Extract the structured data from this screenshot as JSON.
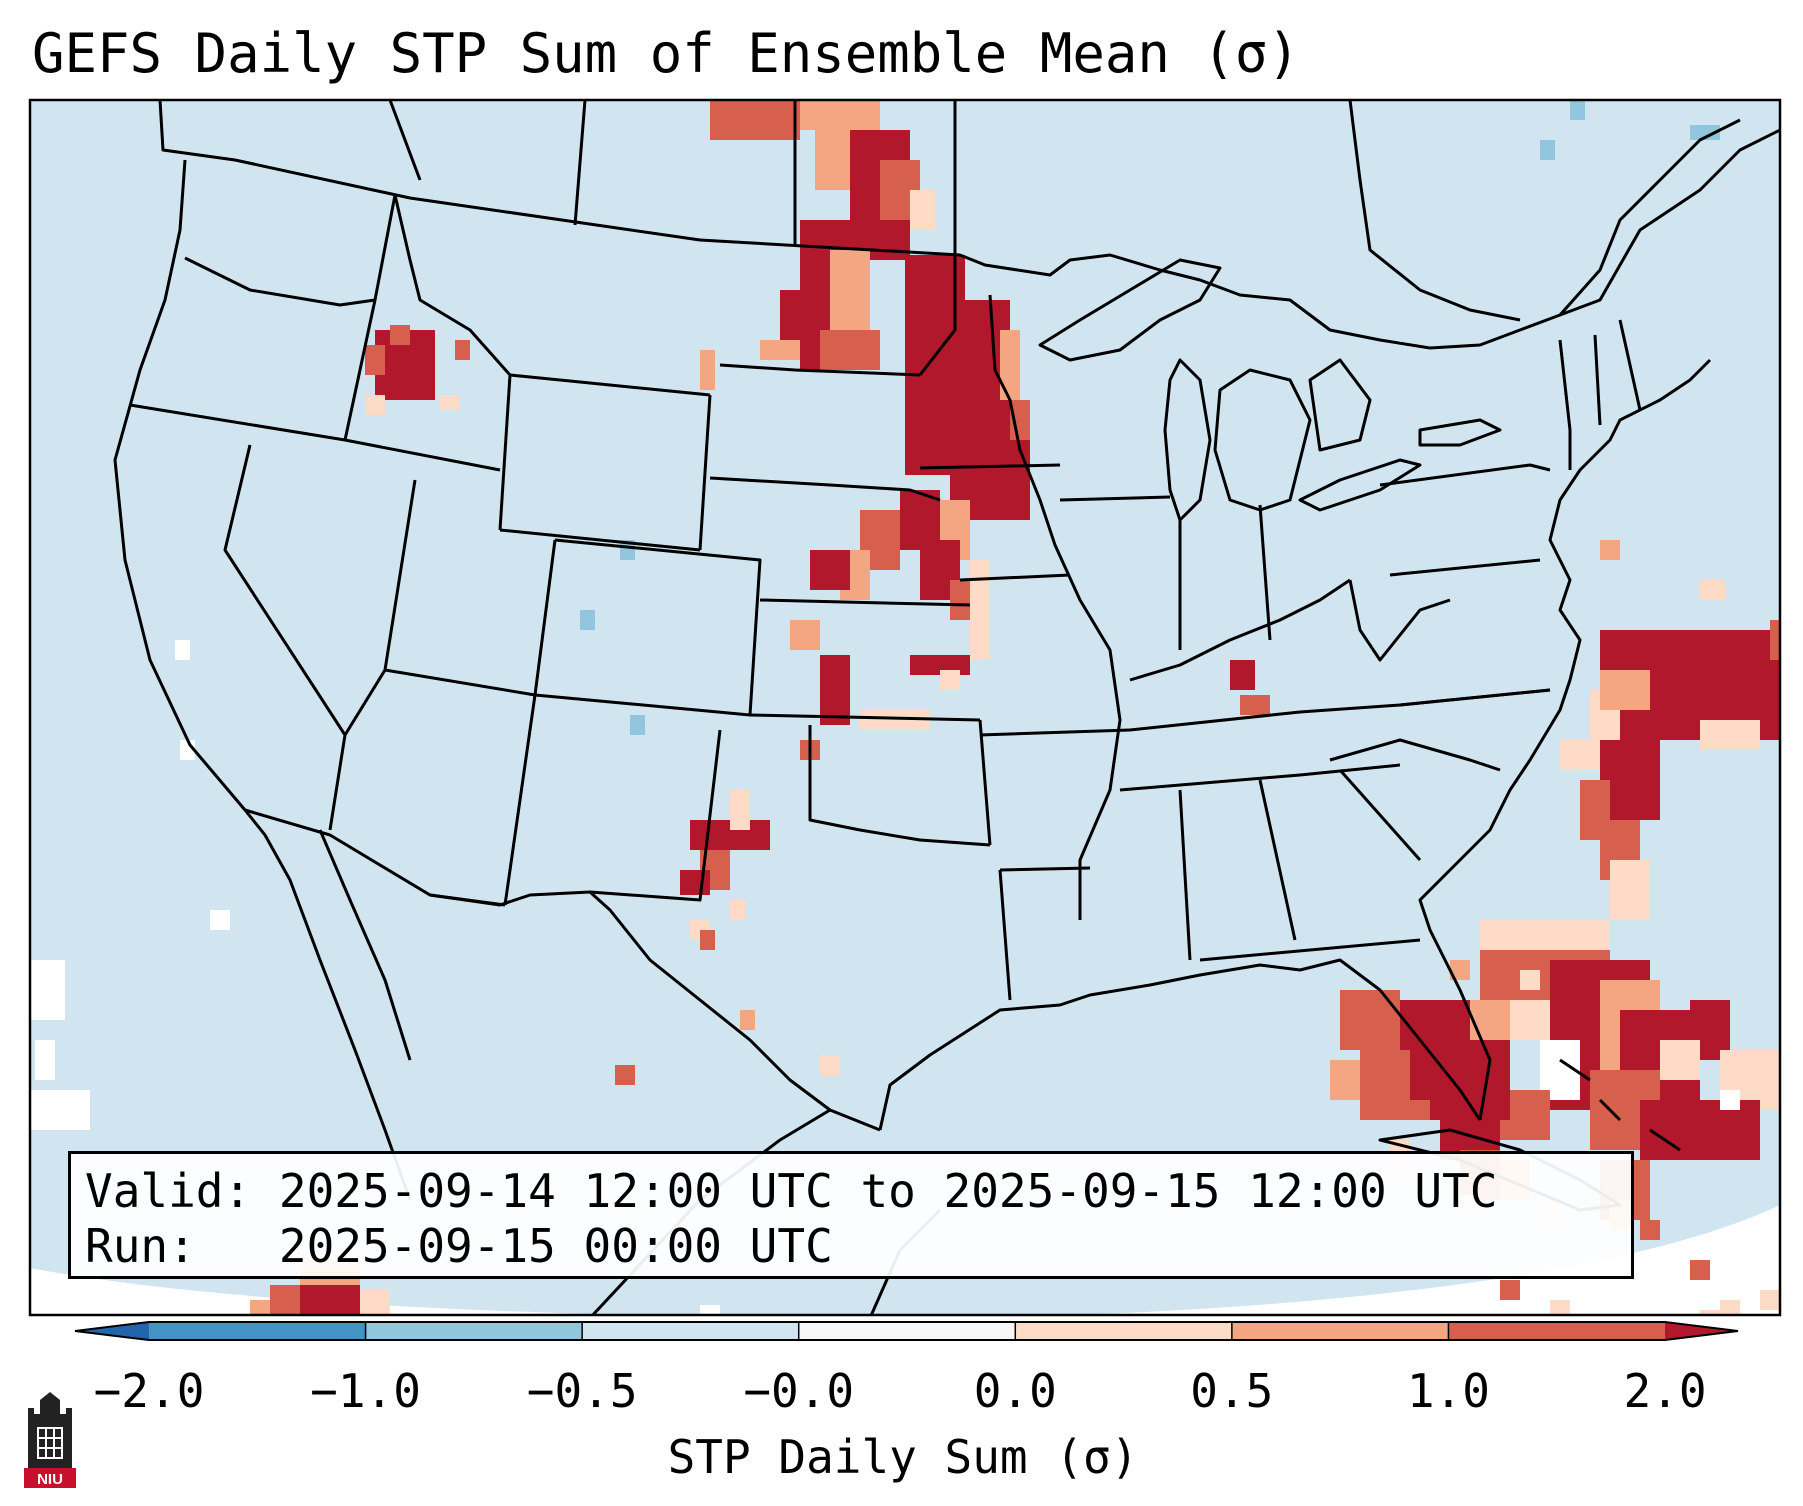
{
  "title": "GEFS Daily STP Sum of Ensemble Mean (σ)",
  "info": {
    "valid_label": "Valid:",
    "valid_value": "2025-09-14 12:00 UTC to 2025-09-15 12:00 UTC",
    "run_label": "Run:",
    "run_value": "2025-09-15 00:00 UTC"
  },
  "colorbar": {
    "label": "STP Daily Sum (σ)",
    "ticks": [
      "−2.0",
      "−1.0",
      "−0.5",
      "−0.0",
      "0.0",
      "0.5",
      "1.0",
      "2.0"
    ],
    "colors": [
      "#4393c3",
      "#92c5de",
      "#d1e5f0",
      "#f7f7f7",
      "#fddbc7",
      "#f4a582",
      "#d6604d"
    ],
    "extend_low_color": "#2166ac",
    "extend_high_color": "#b2182b"
  },
  "map": {
    "ocean_color": "#ffffff",
    "background_color": "#d1e5f0"
  },
  "logo": {
    "text": "NIU"
  }
}
